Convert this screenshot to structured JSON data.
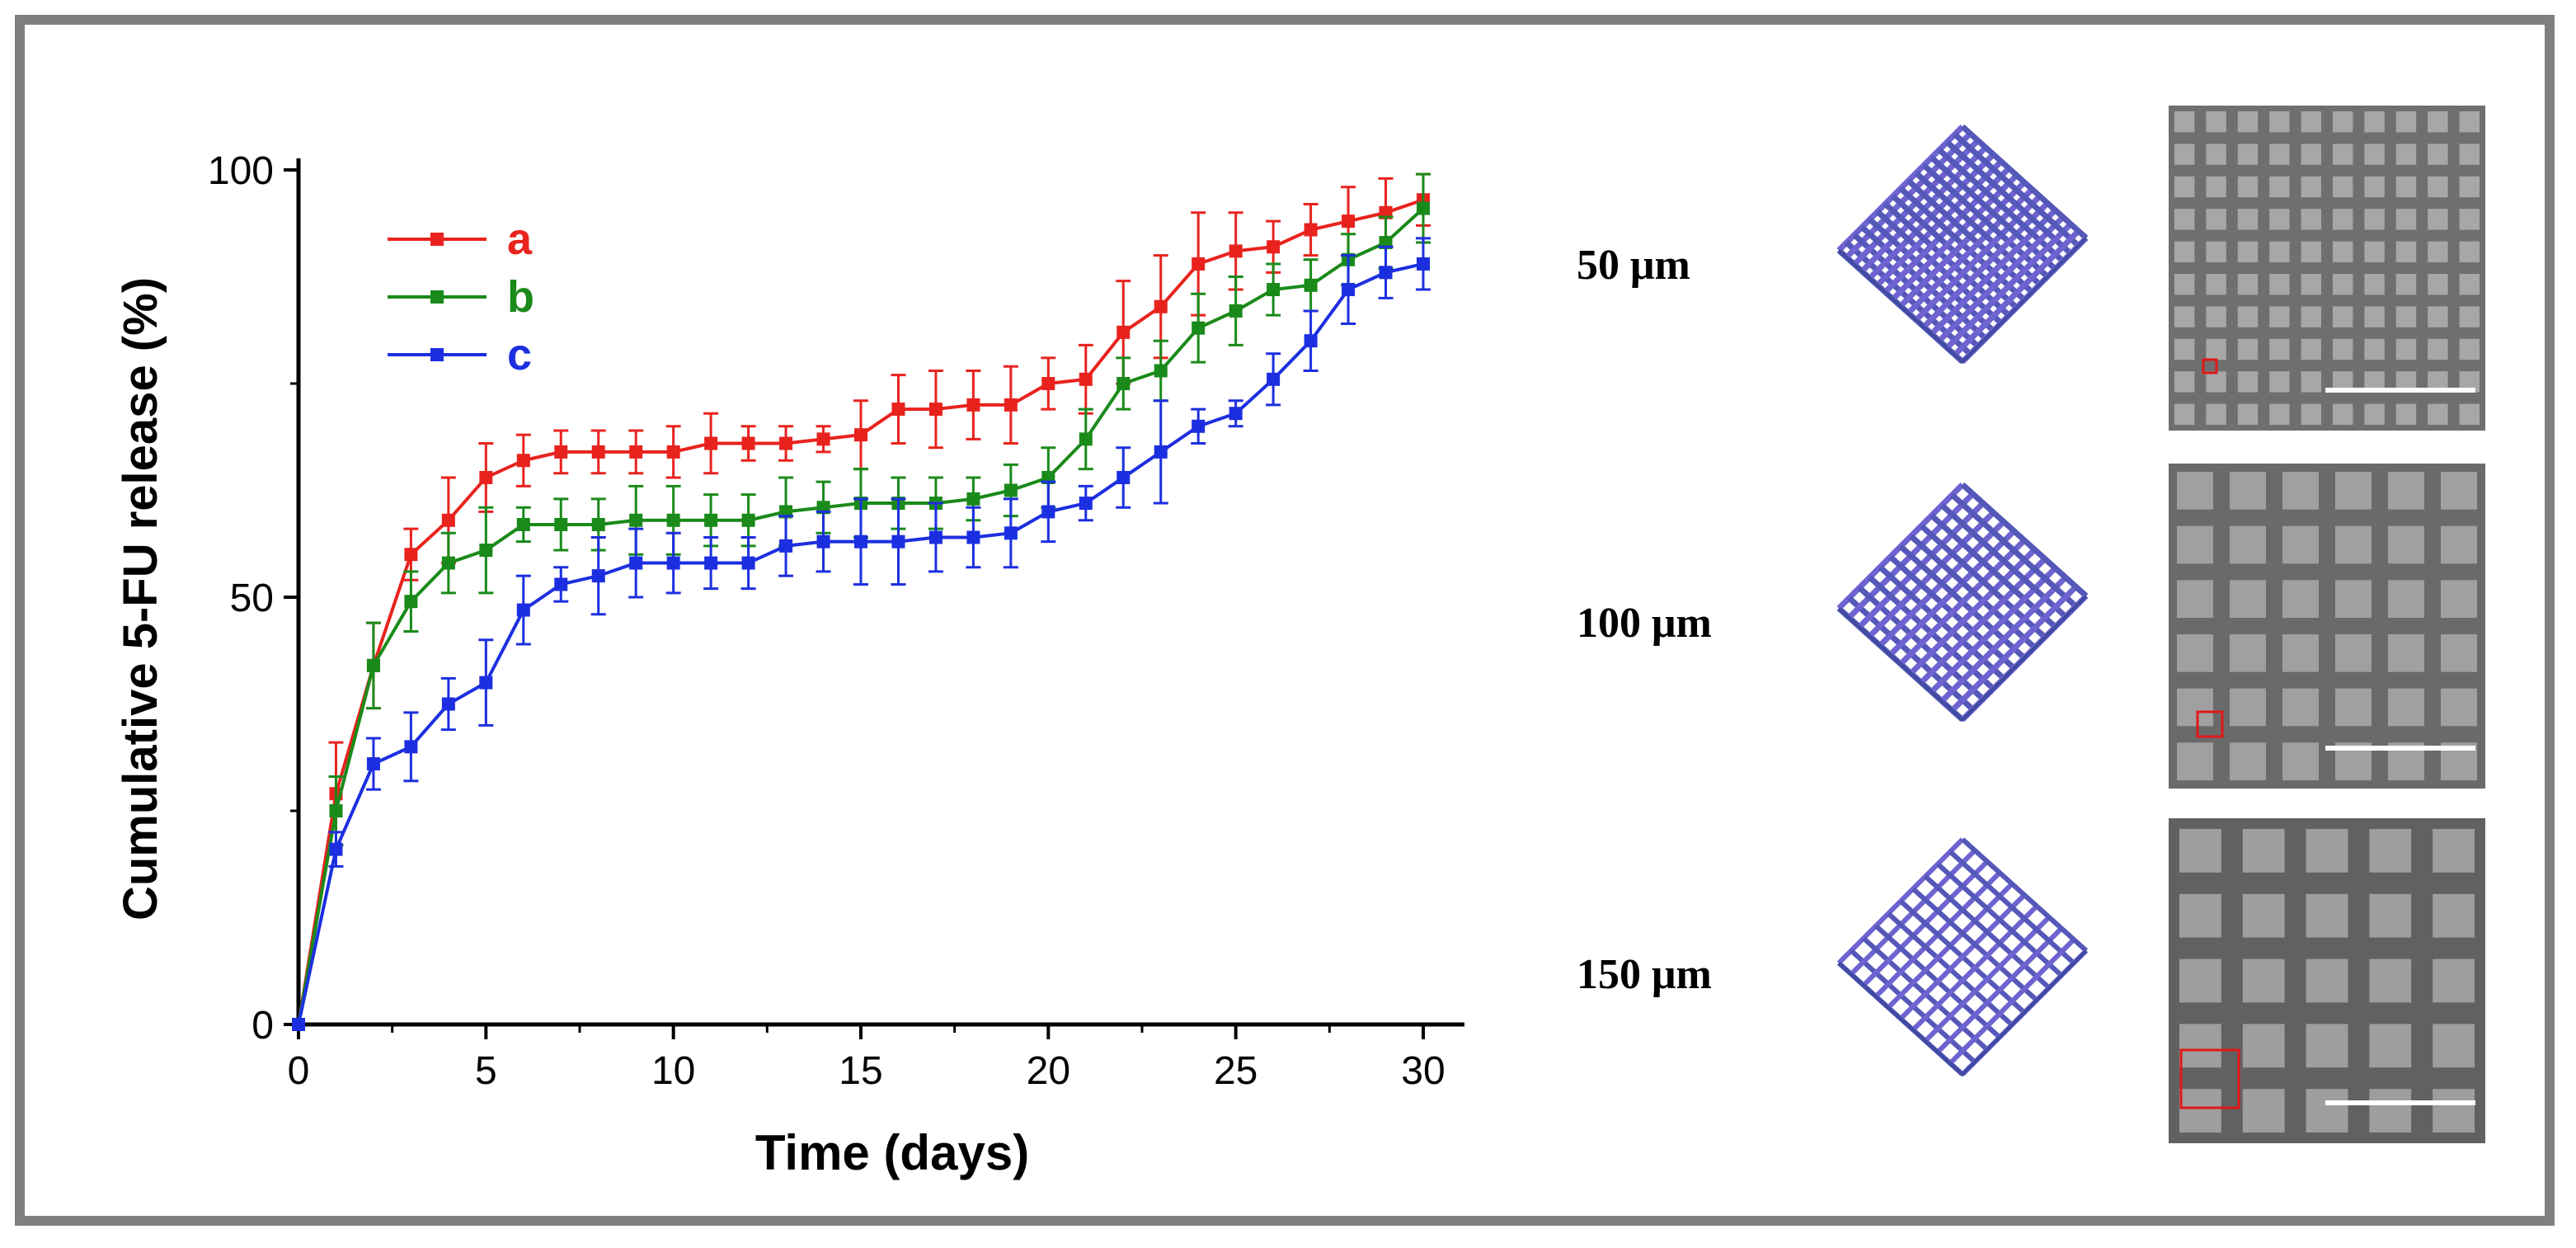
{
  "chart_data": {
    "type": "line",
    "xlabel": "Time (days)",
    "ylabel": "Cumulative 5-FU release (%)",
    "xlim": [
      0,
      30
    ],
    "ylim": [
      0,
      100
    ],
    "xticks": [
      0,
      5,
      10,
      15,
      20,
      25,
      30
    ],
    "yticks": [
      0,
      50,
      100
    ],
    "legend_position": "top-left",
    "grid": false,
    "x": [
      0,
      1,
      2,
      3,
      4,
      5,
      6,
      7,
      8,
      9,
      10,
      11,
      12,
      13,
      14,
      15,
      16,
      17,
      18,
      19,
      20,
      21,
      22,
      23,
      24,
      25,
      26,
      27,
      28,
      29,
      30
    ],
    "series": [
      {
        "name": "a",
        "color": "#e8231e",
        "values": [
          0,
          27,
          42,
          55,
          59,
          64,
          66,
          67,
          67,
          67,
          67,
          68,
          68,
          68,
          68.5,
          69,
          72,
          72,
          72.5,
          72.5,
          75,
          75.5,
          81,
          84,
          89,
          90.5,
          91,
          93,
          94,
          95,
          96.5
        ],
        "errors": [
          0,
          6,
          5,
          3,
          5,
          4,
          3,
          2.5,
          2.5,
          2.5,
          3,
          3.5,
          2,
          2,
          1.5,
          4,
          4,
          4.5,
          4,
          4.5,
          3,
          4,
          6,
          6,
          6,
          4.5,
          3,
          3,
          4,
          4,
          3
        ]
      },
      {
        "name": "b",
        "color": "#1a8a1a",
        "values": [
          0,
          25,
          42,
          49.5,
          54,
          55.5,
          58.5,
          58.5,
          58.5,
          59,
          59,
          59,
          59,
          60,
          60.5,
          61,
          61,
          61,
          61.5,
          62.5,
          64,
          68.5,
          75,
          76.5,
          81.5,
          83.5,
          86,
          86.5,
          89.5,
          91.5,
          95.5
        ],
        "errors": [
          0,
          4,
          5,
          3.5,
          3.5,
          5,
          2,
          3,
          3,
          4,
          4,
          3,
          3,
          4,
          3,
          4,
          3,
          3,
          2.5,
          3,
          3.5,
          3.5,
          3,
          3.5,
          4,
          4,
          3,
          3,
          3,
          3,
          4
        ]
      },
      {
        "name": "c",
        "color": "#1c2fe0",
        "values": [
          0,
          20.5,
          30.5,
          32.5,
          37.5,
          40,
          48.5,
          51.5,
          52.5,
          54,
          54,
          54,
          54,
          56,
          56.5,
          56.5,
          56.5,
          57,
          57,
          57.5,
          60,
          61,
          64,
          67,
          70,
          71.5,
          75.5,
          80,
          86,
          88,
          89
        ],
        "errors": [
          0,
          2,
          3,
          4,
          3,
          5,
          4,
          2,
          4.5,
          4,
          3.5,
          3,
          3,
          3.5,
          3.5,
          5,
          5,
          4,
          3.5,
          4,
          3.5,
          2,
          3.5,
          6,
          2,
          1.5,
          3,
          3.5,
          4,
          3,
          3
        ]
      }
    ]
  },
  "scaffolds": [
    {
      "size_label": "50 μm"
    },
    {
      "size_label": "100 μm"
    },
    {
      "size_label": "150 μm"
    }
  ]
}
